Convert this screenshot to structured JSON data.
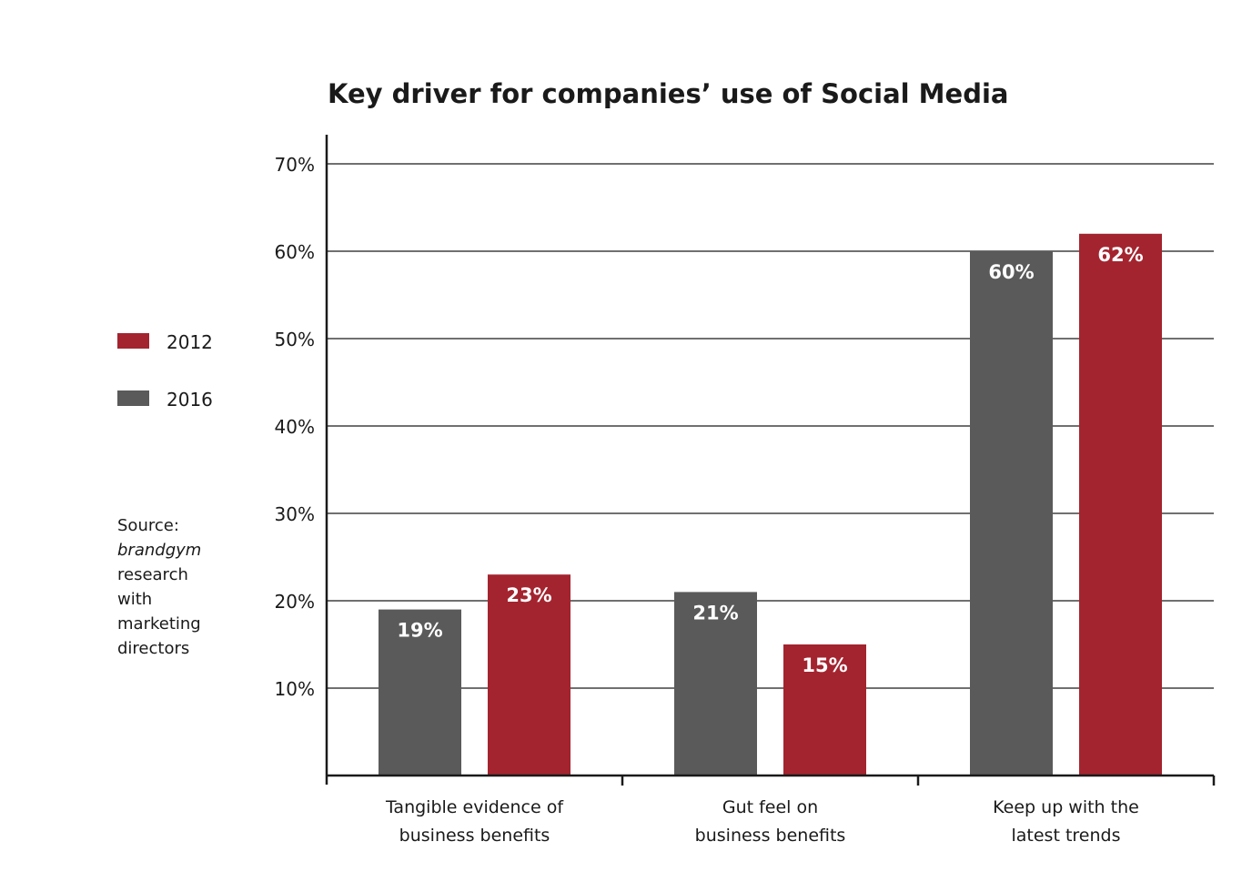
{
  "chart_data": {
    "type": "bar",
    "title": "Key driver for companies’ use of Social Media",
    "categories": [
      [
        "Tangible evidence of",
        "business benefits"
      ],
      [
        "Gut feel on",
        "business benefits"
      ],
      [
        "Keep up with the",
        "latest trends"
      ]
    ],
    "series": [
      {
        "name": "2016",
        "color": "#5a5a5a",
        "values": [
          19,
          21,
          60
        ],
        "labels": [
          "19%",
          "21%",
          "60%"
        ]
      },
      {
        "name": "2012",
        "color": "#a3242f",
        "values": [
          23,
          15,
          62
        ],
        "labels": [
          "23%",
          "15%",
          "62%"
        ]
      }
    ],
    "legend_order": [
      "2012",
      "2016"
    ],
    "ylim": [
      0,
      70
    ],
    "yticks": [
      10,
      20,
      30,
      40,
      50,
      60,
      70
    ],
    "ytick_labels": [
      "10%",
      "20%",
      "30%",
      "40%",
      "50%",
      "60%",
      "70%"
    ],
    "xlabel": "",
    "ylabel": "",
    "grid": true,
    "legend_position": "left",
    "source": {
      "prefix": "Source:",
      "italic": "brandgym",
      "rest": [
        "research",
        "with",
        "marketing",
        "directors"
      ]
    }
  }
}
